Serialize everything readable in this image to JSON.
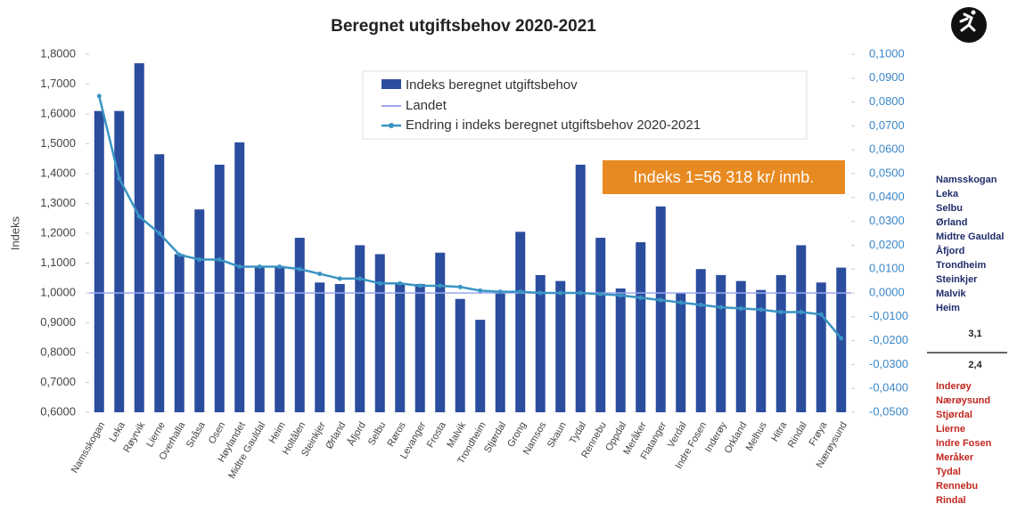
{
  "chart_data": {
    "type": "bar",
    "title": "Beregnet utgiftsbehov 2020-2021",
    "y_label": "Indeks",
    "categories": [
      "Namsskogan",
      "Leka",
      "Røyrvik",
      "Lierne",
      "Overhalla",
      "Snåsa",
      "Osen",
      "Høylandet",
      "Midtre Gauldal",
      "Heim",
      "Holtålen",
      "Steinkjer",
      "Ørland",
      "Åfjord",
      "Selbu",
      "Røros",
      "Levanger",
      "Frosta",
      "Malvik",
      "Trondheim",
      "Stjørdal",
      "Grong",
      "Namsos",
      "Skaun",
      "Tydal",
      "Rennebu",
      "Oppdal",
      "Meråker",
      "Flatanger",
      "Verdal",
      "Indre Fosen",
      "Inderøy",
      "Orkland",
      "Melhus",
      "Hitra",
      "Rindal",
      "Frøya",
      "Nærøysund"
    ],
    "series": [
      {
        "name": "Indeks beregnet utgiftsbehov",
        "color": "#2b4d9e",
        "values": [
          1.61,
          1.61,
          1.77,
          1.465,
          1.13,
          1.28,
          1.43,
          1.505,
          1.09,
          1.09,
          1.185,
          1.035,
          1.03,
          1.16,
          1.13,
          1.03,
          1.03,
          1.135,
          0.98,
          0.91,
          1.0,
          1.205,
          1.06,
          1.04,
          1.43,
          1.185,
          1.015,
          1.17,
          1.29,
          1.0,
          1.08,
          1.06,
          1.04,
          1.01,
          1.06,
          1.16,
          1.035,
          1.085
        ]
      },
      {
        "name": "Endring i indeks beregnet utgiftsbehov 2020-2021",
        "color": "#3a94c4",
        "axis": "y2",
        "values": [
          0.0825,
          0.048,
          0.032,
          0.025,
          0.016,
          0.014,
          0.014,
          0.011,
          0.011,
          0.011,
          0.01,
          0.008,
          0.006,
          0.006,
          0.004,
          0.004,
          0.003,
          0.003,
          0.0025,
          0.001,
          0.0005,
          0.0005,
          0,
          0,
          0,
          -0.0005,
          -0.001,
          -0.002,
          -0.003,
          -0.004,
          -0.005,
          -0.006,
          -0.0065,
          -0.007,
          -0.008,
          -0.008,
          -0.009,
          -0.019
        ]
      }
    ],
    "reference": {
      "name": "Landet",
      "value": 1,
      "color": "#9aa8f0"
    },
    "ylim": [
      0.6,
      1.8
    ],
    "yticks": [
      {
        "value": 0.6,
        "label": "0,6000"
      },
      {
        "value": 0.7,
        "label": "0,7000"
      },
      {
        "value": 0.8,
        "label": "0,8000"
      },
      {
        "value": 0.9,
        "label": "0,9000"
      },
      {
        "value": 1.0,
        "label": "1,0000"
      },
      {
        "value": 1.1,
        "label": "1,1000"
      },
      {
        "value": 1.2,
        "label": "1,2000"
      },
      {
        "value": 1.3,
        "label": "1,3000"
      },
      {
        "value": 1.4,
        "label": "1,4000"
      },
      {
        "value": 1.5,
        "label": "1,5000"
      },
      {
        "value": 1.6,
        "label": "1,6000"
      },
      {
        "value": 1.7,
        "label": "1,7000"
      },
      {
        "value": 1.8,
        "label": "1,8000"
      }
    ],
    "y2lim": [
      -0.05,
      0.1
    ],
    "y2ticks": [
      {
        "value": -0.05,
        "label": "-0,0500"
      },
      {
        "value": -0.04,
        "label": "-0,0400"
      },
      {
        "value": -0.03,
        "label": "-0,0300"
      },
      {
        "value": -0.02,
        "label": "-0,0200"
      },
      {
        "value": -0.01,
        "label": "-0,0100"
      },
      {
        "value": 0,
        "label": "0,0000"
      },
      {
        "value": 0.01,
        "label": "0,0100"
      },
      {
        "value": 0.02,
        "label": "0,0200"
      },
      {
        "value": 0.03,
        "label": "0,0300"
      },
      {
        "value": 0.04,
        "label": "0,0400"
      },
      {
        "value": 0.05,
        "label": "0,0500"
      },
      {
        "value": 0.06,
        "label": "0,0600"
      },
      {
        "value": 0.07,
        "label": "0,0700"
      },
      {
        "value": 0.08,
        "label": "0,0800"
      },
      {
        "value": 0.09,
        "label": "0,0900"
      },
      {
        "value": 0.1,
        "label": "0,1000"
      }
    ],
    "annotation": "Indeks 1=56 318 kr/ innb.",
    "side_list": {
      "top": [
        "Namsskogan",
        "Leka",
        "Selbu",
        "Ørland",
        "Midtre Gauldal",
        "Åfjord",
        "Trondheim",
        "Steinkjer",
        "Malvik",
        "Heim"
      ],
      "top_value": "3,1",
      "bottom_value": "2,4",
      "bottom": [
        "Inderøy",
        "Nærøysund",
        "Stjørdal",
        "Lierne",
        "Indre Fosen",
        "Meråker",
        "Tydal",
        "Rennebu",
        "Rindal"
      ]
    }
  }
}
